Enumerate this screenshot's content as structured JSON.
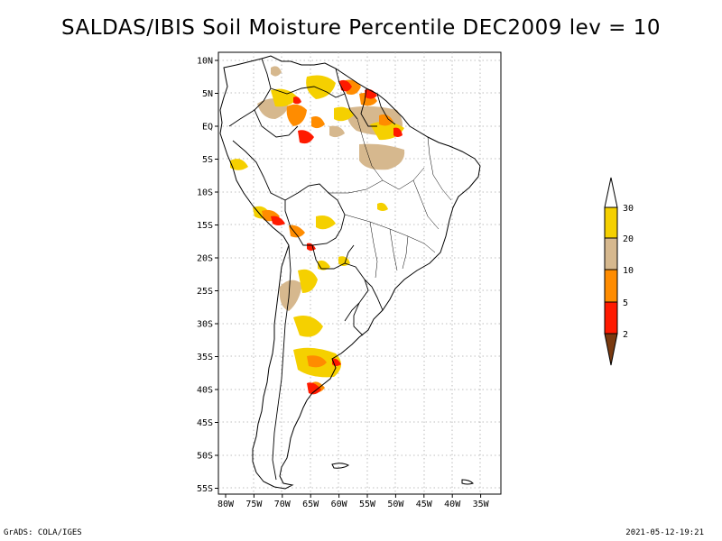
{
  "title": "SALDAS/IBIS Soil Moisture Percentile DEC2009 lev = 10",
  "footer": {
    "left": "GrADS: COLA/IGES",
    "right": "2021-05-12-19:21"
  },
  "axes": {
    "lon_labels": [
      "80W",
      "75W",
      "70W",
      "65W",
      "60W",
      "55W",
      "50W",
      "45W",
      "40W",
      "35W"
    ],
    "lat_labels": [
      "10N",
      "5N",
      "EQ",
      "5S",
      "10S",
      "15S",
      "20S",
      "25S",
      "30S",
      "35S",
      "40S",
      "45S",
      "50S",
      "55S"
    ]
  },
  "legend": {
    "labels": [
      "30",
      "20",
      "10",
      "5",
      "2"
    ],
    "colors": {
      "above30": "#ffffff",
      "c20_30": "#f5d000",
      "c10_20": "#d6b88e",
      "c5_10": "#ff8c00",
      "c2_5": "#ff1a00",
      "below2": "#7a3a10"
    }
  },
  "colors": {
    "coast": "#000000",
    "grid": "#999999"
  }
}
